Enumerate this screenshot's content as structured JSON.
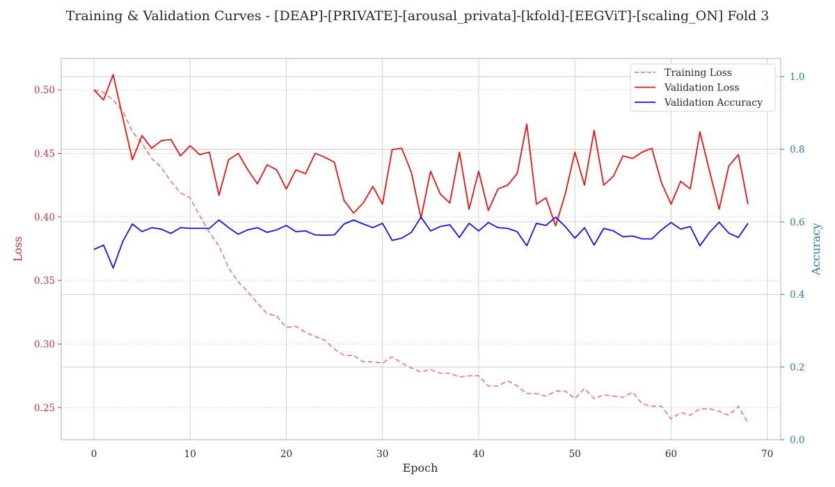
{
  "chart_data": {
    "type": "line",
    "title": "Training & Validation Curves - [DEAP]-[PRIVATE]-[arousal_privata]-[kfold]-[EEGViT]-[scaling_ON] Fold 3",
    "xlabel": "Epoch",
    "ylabel_left": "Loss",
    "ylabel_right": "Accuracy",
    "xlim": [
      -3.4,
      71.4
    ],
    "ylim_left": [
      0.2247,
      0.5247
    ],
    "ylim_right": [
      0.0,
      1.05
    ],
    "xticks": [
      0,
      10,
      20,
      30,
      40,
      50,
      60,
      70
    ],
    "yticks_left": [
      0.25,
      0.3,
      0.35,
      0.4,
      0.45,
      0.5
    ],
    "yticks_right": [
      0.0,
      0.2,
      0.4,
      0.6,
      0.8,
      1.0
    ],
    "legend_position": "top-right",
    "grid": true,
    "colors": {
      "training_loss": "#f08080",
      "validation_loss": "#ee1111",
      "validation_accuracy": "#1111ee",
      "left_axis": "#cc3333",
      "right_axis": "#2277aa"
    },
    "series": [
      {
        "name": "Training Loss",
        "axis": "left",
        "style": "dashed",
        "values": [
          0.5,
          0.498,
          0.492,
          0.483,
          0.467,
          0.458,
          0.446,
          0.439,
          0.428,
          0.419,
          0.415,
          0.401,
          0.388,
          0.377,
          0.36,
          0.349,
          0.341,
          0.332,
          0.324,
          0.322,
          0.313,
          0.314,
          0.309,
          0.306,
          0.303,
          0.296,
          0.291,
          0.291,
          0.286,
          0.286,
          0.285,
          0.29,
          0.285,
          0.281,
          0.278,
          0.28,
          0.277,
          0.277,
          0.274,
          0.275,
          0.275,
          0.267,
          0.267,
          0.271,
          0.267,
          0.261,
          0.261,
          0.259,
          0.263,
          0.263,
          0.257,
          0.265,
          0.257,
          0.26,
          0.259,
          0.258,
          0.262,
          0.253,
          0.251,
          0.251,
          0.241,
          0.246,
          0.244,
          0.249,
          0.249,
          0.247,
          0.244,
          0.251,
          0.238
        ]
      },
      {
        "name": "Validation Loss",
        "axis": "left",
        "style": "solid",
        "values": [
          0.5,
          0.492,
          0.512,
          0.478,
          0.445,
          0.464,
          0.454,
          0.46,
          0.461,
          0.448,
          0.456,
          0.449,
          0.451,
          0.417,
          0.445,
          0.45,
          0.437,
          0.426,
          0.441,
          0.437,
          0.422,
          0.437,
          0.434,
          0.45,
          0.447,
          0.443,
          0.413,
          0.403,
          0.411,
          0.424,
          0.41,
          0.453,
          0.454,
          0.435,
          0.399,
          0.436,
          0.418,
          0.411,
          0.451,
          0.406,
          0.436,
          0.405,
          0.422,
          0.425,
          0.434,
          0.473,
          0.41,
          0.415,
          0.393,
          0.418,
          0.451,
          0.425,
          0.468,
          0.425,
          0.432,
          0.448,
          0.446,
          0.451,
          0.454,
          0.427,
          0.41,
          0.428,
          0.422,
          0.467,
          0.436,
          0.406,
          0.44,
          0.449,
          0.41
        ]
      },
      {
        "name": "Validation Accuracy",
        "axis": "right",
        "style": "solid",
        "values": [
          0.524,
          0.536,
          0.473,
          0.546,
          0.594,
          0.573,
          0.584,
          0.58,
          0.568,
          0.584,
          0.582,
          0.582,
          0.582,
          0.605,
          0.584,
          0.566,
          0.578,
          0.584,
          0.571,
          0.578,
          0.59,
          0.573,
          0.575,
          0.564,
          0.563,
          0.564,
          0.594,
          0.605,
          0.594,
          0.584,
          0.596,
          0.549,
          0.555,
          0.571,
          0.613,
          0.575,
          0.587,
          0.592,
          0.557,
          0.596,
          0.575,
          0.598,
          0.584,
          0.582,
          0.573,
          0.534,
          0.596,
          0.59,
          0.613,
          0.587,
          0.555,
          0.584,
          0.536,
          0.582,
          0.575,
          0.559,
          0.561,
          0.553,
          0.553,
          0.578,
          0.598,
          0.58,
          0.587,
          0.534,
          0.571,
          0.599,
          0.569,
          0.557,
          0.596
        ]
      }
    ]
  }
}
